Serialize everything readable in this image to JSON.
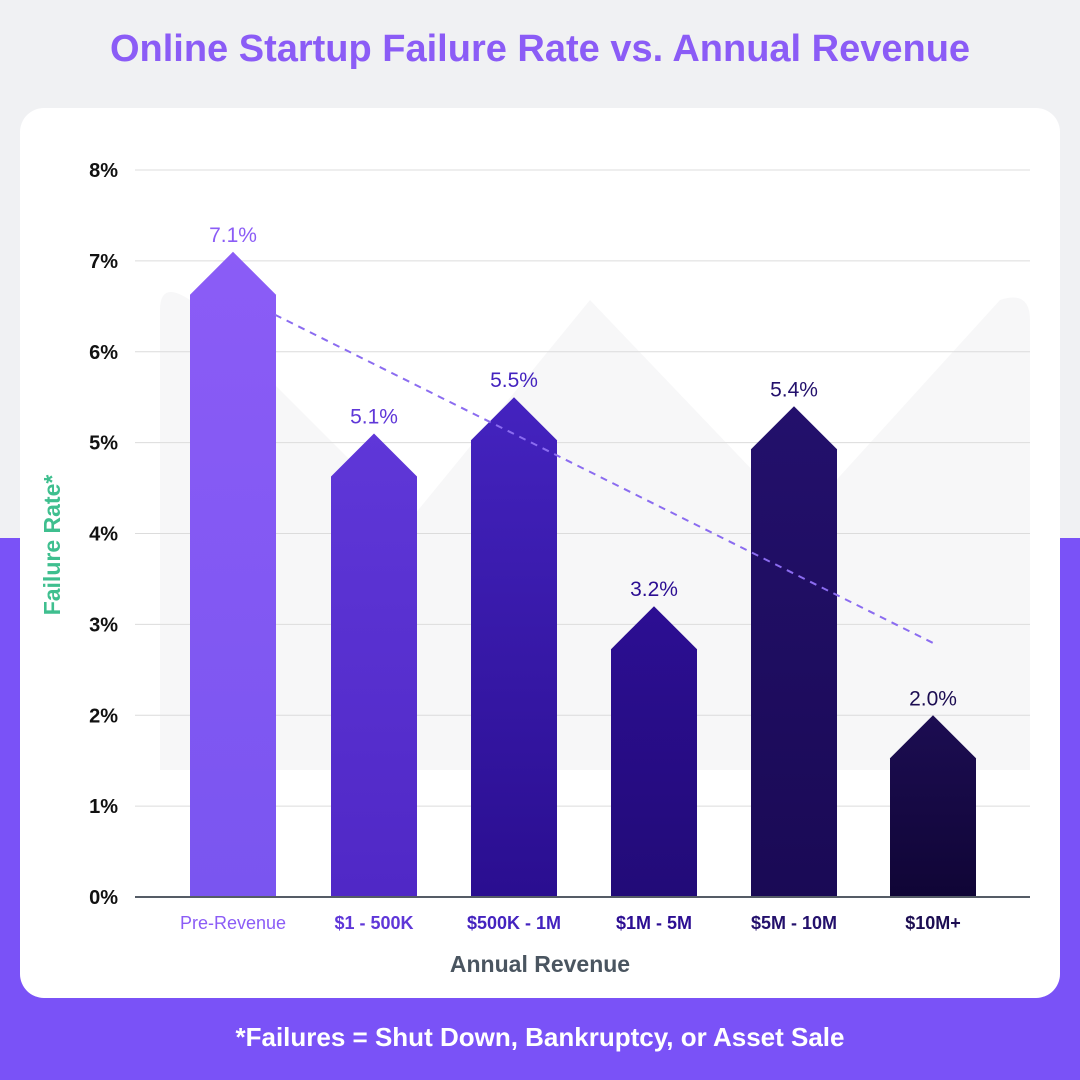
{
  "title": "Online Startup Failure Rate vs. Annual Revenue",
  "footnote": "*Failures = Shut Down, Bankruptcy, or Asset Sale",
  "chart_data": {
    "type": "bar",
    "title": "Online Startup Failure Rate vs. Annual Revenue",
    "xlabel": "Annual Revenue",
    "ylabel": "Failure Rate*",
    "categories": [
      "Pre-Revenue",
      "$1 - 500K",
      "$500K - 1M",
      "$1M - 5M",
      "$5M - 10M",
      "$10M+"
    ],
    "values": [
      7.1,
      5.1,
      5.5,
      3.2,
      5.4,
      2.0
    ],
    "data_labels": [
      "7.1%",
      "5.1%",
      "5.5%",
      "3.2%",
      "5.4%",
      "2.0%"
    ],
    "ylim": [
      0,
      8
    ],
    "yticks": [
      "0%",
      "1%",
      "2%",
      "3%",
      "4%",
      "5%",
      "6%",
      "7%",
      "8%"
    ],
    "grid": true,
    "trendline": "linear, dashed",
    "colors": {
      "bars_top": [
        "#8b5cf6",
        "#5f37d8",
        "#4423bf",
        "#2c0e93",
        "#23106c",
        "#1c0d52"
      ],
      "bars_bottom": [
        "#7a55f0",
        "#5028c6",
        "#2a0e90",
        "#220b78",
        "#1a0a55",
        "#100536"
      ],
      "trendline": "#8b6cf0",
      "ylabel": "#3fbf8f",
      "xlabel": "#4a5560"
    }
  }
}
